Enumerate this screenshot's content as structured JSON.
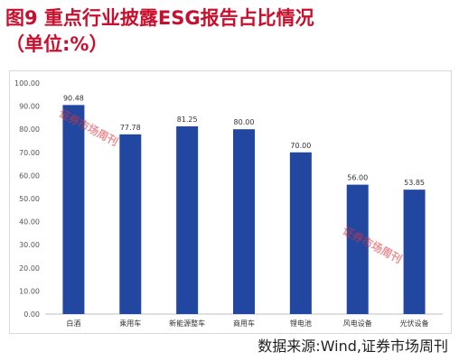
{
  "title": "图9  重点行业披露ESG报告占比情况\n（单位:%）",
  "source": "数据来源:Wind,证券市场周刊",
  "watermark": "证券市场周刊",
  "chart_data": {
    "type": "bar",
    "categories": [
      "白酒",
      "乘用车",
      "新能源整车",
      "商用车",
      "锂电池",
      "风电设备",
      "光伏设备"
    ],
    "values": [
      90.48,
      77.78,
      81.25,
      80.0,
      70.0,
      56.0,
      53.85
    ],
    "data_labels": [
      "90.48",
      "77.78",
      "81.25",
      "80.00",
      "70.00",
      "56.00",
      "53.85"
    ],
    "y_ticks": [
      "0.00",
      "10.00",
      "20.00",
      "30.00",
      "40.00",
      "50.00",
      "60.00",
      "70.00",
      "80.00",
      "90.00",
      "100.00"
    ],
    "ylim": [
      0,
      100
    ],
    "title": "图9  重点行业披露ESG报告占比情况（单位:%）",
    "xlabel": "",
    "ylabel": "",
    "grid": false,
    "bar_color": "#2147a0"
  }
}
